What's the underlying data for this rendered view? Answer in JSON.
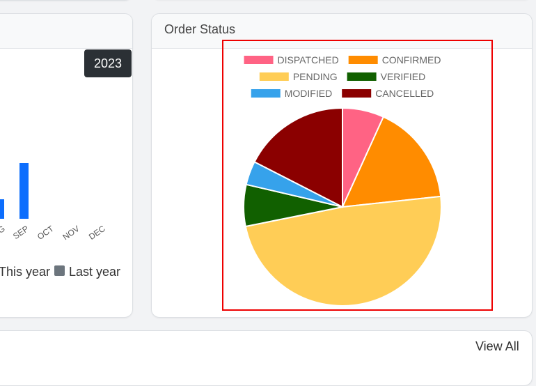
{
  "left_panel": {
    "year_badge": "2023",
    "bar_chart": {
      "type": "bar",
      "visible_month_labels": [
        "G",
        "SEP",
        "OCT",
        "NOV",
        "DEC"
      ],
      "legend": [
        {
          "label": "This year",
          "color": "#0d6efd"
        },
        {
          "label": "Last year",
          "color": "#6c757d"
        }
      ]
    }
  },
  "order_status": {
    "title": "Order Status"
  },
  "bottom_panel": {
    "view_all": "View All"
  },
  "chart_data": {
    "type": "pie",
    "title": "",
    "legend_position": "top",
    "categories": [
      "DISPATCHED",
      "CONFIRMED",
      "PENDING",
      "VERIFIED",
      "MODIFIED",
      "CANCELLED"
    ],
    "values": [
      7,
      17,
      50,
      7,
      4,
      18
    ],
    "colors": [
      "#ff6384",
      "#ff8c00",
      "#ffcd56",
      "#116000",
      "#36a2eb",
      "#8b0000"
    ]
  }
}
